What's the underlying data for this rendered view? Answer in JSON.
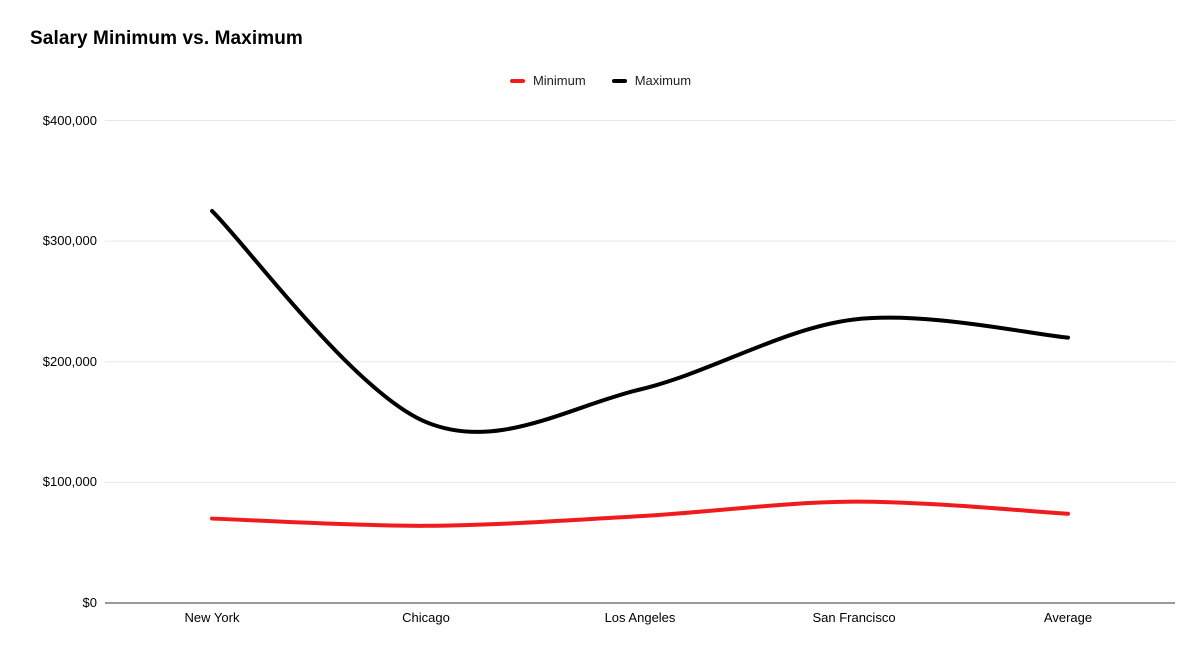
{
  "chart_data": {
    "type": "line",
    "line_style": "smooth",
    "title": "Salary Minimum vs. Maximum",
    "categories": [
      "New York",
      "Chicago",
      "Los Angeles",
      "San Francisco",
      "Average"
    ],
    "series": [
      {
        "name": "Minimum",
        "color": "#f01b1d",
        "values": [
          70000,
          64000,
          72000,
          84000,
          74000
        ]
      },
      {
        "name": "Maximum",
        "color": "#000000",
        "values": [
          325000,
          150000,
          177000,
          235000,
          220000
        ]
      }
    ],
    "ylim": [
      0,
      400000
    ],
    "y_ticks": [
      0,
      100000,
      200000,
      300000,
      400000
    ],
    "y_tick_labels": [
      "$0",
      "$100,000",
      "$200,000",
      "$300,000",
      "$400,000"
    ],
    "grid": true,
    "legend_position": "top",
    "colors": {
      "background": "#ffffff",
      "gridline": "#e6e6e6",
      "baseline": "#333333",
      "title_text": "#000000",
      "legend_text": "#212121",
      "tick_text": "#000000"
    }
  }
}
